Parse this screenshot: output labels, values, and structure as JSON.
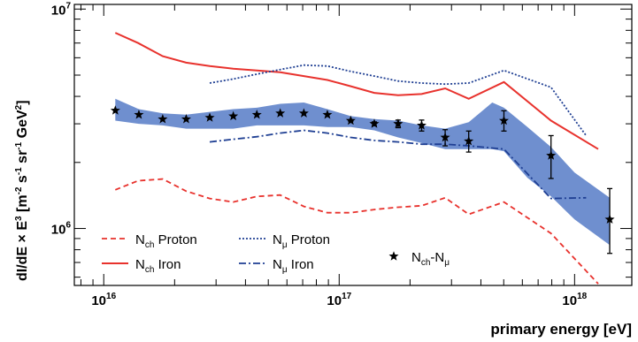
{
  "chart_data": {
    "type": "line",
    "x_scale": "log",
    "y_scale": "log",
    "xlim": [
      7500000000000000.0,
      1.75e+18
    ],
    "ylim": [
      550000.0,
      10500000.0
    ],
    "xlabel": "primary energy [eV]",
    "ylabel_parts": [
      "dI/dE × E",
      "3",
      " [m",
      "-2",
      " s",
      "-1",
      " sr",
      "-1",
      " GeV",
      "2",
      "]"
    ],
    "x_ticks": [
      {
        "value": 1e+16,
        "base": "10",
        "exp": "16"
      },
      {
        "value": 1e+17,
        "base": "10",
        "exp": "17"
      },
      {
        "value": 1e+18,
        "base": "10",
        "exp": "18"
      }
    ],
    "y_ticks": [
      {
        "value": 1000000.0,
        "base": "10",
        "exp": "6"
      },
      {
        "value": 10000000.0,
        "base": "10",
        "exp": "7"
      }
    ],
    "colors": {
      "red": "#e8322d",
      "navy": "#1f3f93",
      "band": "#6f8fcf"
    },
    "series": [
      {
        "name": "N_ch Proton",
        "color": "#e8322d",
        "style": "dashed",
        "x": [
          1.12e+16,
          1.4e+16,
          1.78e+16,
          2.24e+16,
          2.82e+16,
          3.55e+16,
          4.47e+16,
          5.62e+16,
          7.08e+16,
          8.91e+16,
          1.12e+17,
          1.41e+17,
          1.78e+17,
          2.24e+17,
          2.82e+17,
          3.55e+17,
          5.01e+17,
          7.94e+17,
          1.26e+18
        ],
        "y": [
          1500000.0,
          1650000.0,
          1680000.0,
          1480000.0,
          1370000.0,
          1320000.0,
          1400000.0,
          1420000.0,
          1260000.0,
          1180000.0,
          1180000.0,
          1220000.0,
          1250000.0,
          1270000.0,
          1380000.0,
          1160000.0,
          1320000.0,
          950000.0,
          560000.0
        ]
      },
      {
        "name": "N_ch Iron",
        "color": "#e8322d",
        "style": "solid",
        "x": [
          1.12e+16,
          1.4e+16,
          1.78e+16,
          2.24e+16,
          2.82e+16,
          3.55e+16,
          4.47e+16,
          5.62e+16,
          7.08e+16,
          8.91e+16,
          1.12e+17,
          1.41e+17,
          1.78e+17,
          2.24e+17,
          2.82e+17,
          3.55e+17,
          5.01e+17,
          7.94e+17,
          1.26e+18
        ],
        "y": [
          7800000.0,
          7000000.0,
          6100000.0,
          5700000.0,
          5500000.0,
          5350000.0,
          5250000.0,
          5150000.0,
          4950000.0,
          4750000.0,
          4450000.0,
          4150000.0,
          4050000.0,
          4100000.0,
          4350000.0,
          3900000.0,
          4650000.0,
          3100000.0,
          2300000.0
        ]
      },
      {
        "name": "N_μ Proton",
        "color": "#1f3f93",
        "style": "dotted",
        "x": [
          2.82e+16,
          3.55e+16,
          4.47e+16,
          5.62e+16,
          7.08e+16,
          8.91e+16,
          1.12e+17,
          1.41e+17,
          1.78e+17,
          2.24e+17,
          2.82e+17,
          3.55e+17,
          5.01e+17,
          7.94e+17,
          1.12e+18
        ],
        "y": [
          4600000.0,
          4800000.0,
          5050000.0,
          5300000.0,
          5550000.0,
          5500000.0,
          5200000.0,
          4950000.0,
          4700000.0,
          4600000.0,
          4550000.0,
          4600000.0,
          5250000.0,
          4400000.0,
          2650000.0
        ]
      },
      {
        "name": "N_μ Iron",
        "color": "#1f3f93",
        "style": "dashdot",
        "x": [
          2.82e+16,
          3.55e+16,
          4.47e+16,
          5.62e+16,
          7.08e+16,
          8.91e+16,
          1.12e+17,
          1.41e+17,
          1.78e+17,
          2.24e+17,
          2.82e+17,
          3.55e+17,
          5.01e+17,
          7.94e+17,
          1.12e+18
        ],
        "y": [
          2480000.0,
          2550000.0,
          2620000.0,
          2720000.0,
          2800000.0,
          2720000.0,
          2600000.0,
          2520000.0,
          2480000.0,
          2420000.0,
          2420000.0,
          2380000.0,
          2300000.0,
          1370000.0,
          1380000.0
        ]
      }
    ],
    "band": {
      "name": "N_μ band",
      "color": "#6f8fcf",
      "x": [
        1.12e+16,
        1.41e+16,
        1.78e+16,
        2.24e+16,
        2.82e+16,
        3.55e+16,
        4.47e+16,
        5.62e+16,
        7.08e+16,
        8.91e+16,
        1.12e+17,
        1.41e+17,
        1.78e+17,
        2.24e+17,
        2.82e+17,
        3.55e+17,
        4.47e+17,
        5.01e+17,
        6.31e+17,
        7.94e+17,
        1e+18,
        1.41e+18
      ],
      "upper": [
        3900000.0,
        3500000.0,
        3350000.0,
        3300000.0,
        3400000.0,
        3500000.0,
        3550000.0,
        3700000.0,
        3750000.0,
        3500000.0,
        3250000.0,
        3150000.0,
        3100000.0,
        2950000.0,
        2850000.0,
        3050000.0,
        3750000.0,
        3550000.0,
        2900000.0,
        2350000.0,
        1800000.0,
        1380000.0
      ],
      "lower": [
        3100000.0,
        3000000.0,
        2950000.0,
        2850000.0,
        2850000.0,
        2850000.0,
        2950000.0,
        2950000.0,
        2950000.0,
        2900000.0,
        2900000.0,
        2800000.0,
        2600000.0,
        2450000.0,
        2300000.0,
        2300000.0,
        2300000.0,
        2250000.0,
        1700000.0,
        1400000.0,
        1100000.0,
        840000.0
      ]
    },
    "stars": {
      "name": "N_ch-N_μ",
      "x": [
        1.12e+16,
        1.41e+16,
        1.78e+16,
        2.24e+16,
        2.82e+16,
        3.55e+16,
        4.47e+16,
        5.62e+16,
        7.08e+16,
        8.91e+16,
        1.12e+17,
        1.41e+17,
        1.78e+17,
        2.24e+17,
        2.82e+17,
        3.55e+17,
        5.01e+17,
        7.94e+17,
        1.41e+18
      ],
      "y": [
        3450000.0,
        3300000.0,
        3150000.0,
        3150000.0,
        3200000.0,
        3250000.0,
        3300000.0,
        3350000.0,
        3350000.0,
        3300000.0,
        3100000.0,
        3000000.0,
        3000000.0,
        2950000.0,
        2600000.0,
        2500000.0,
        3100000.0,
        2150000.0,
        1100000.0
      ],
      "err_lo": [
        0,
        0,
        0,
        0,
        0,
        0,
        0,
        0,
        0,
        0,
        20000.0,
        60000.0,
        120000.0,
        170000.0,
        220000.0,
        270000.0,
        320000.0,
        460000.0,
        330000.0
      ],
      "err_hi": [
        0,
        0,
        0,
        0,
        0,
        0,
        0,
        0,
        0,
        0,
        20000.0,
        60000.0,
        120000.0,
        170000.0,
        220000.0,
        280000.0,
        340000.0,
        500000.0,
        420000.0
      ]
    },
    "legend": [
      {
        "key": "nchp",
        "main": "N",
        "sub": "ch",
        "rest": " Proton"
      },
      {
        "key": "nchi",
        "main": "N",
        "sub": "ch",
        "rest": " Iron"
      },
      {
        "key": "nmup",
        "main": "N",
        "sub": "μ",
        "rest": " Proton"
      },
      {
        "key": "nmui",
        "main": "N",
        "sub": "μ",
        "rest": " Iron"
      },
      {
        "key": "star",
        "main": "N",
        "sub": "ch",
        "mid": "-N",
        "sub2": "μ"
      }
    ]
  }
}
